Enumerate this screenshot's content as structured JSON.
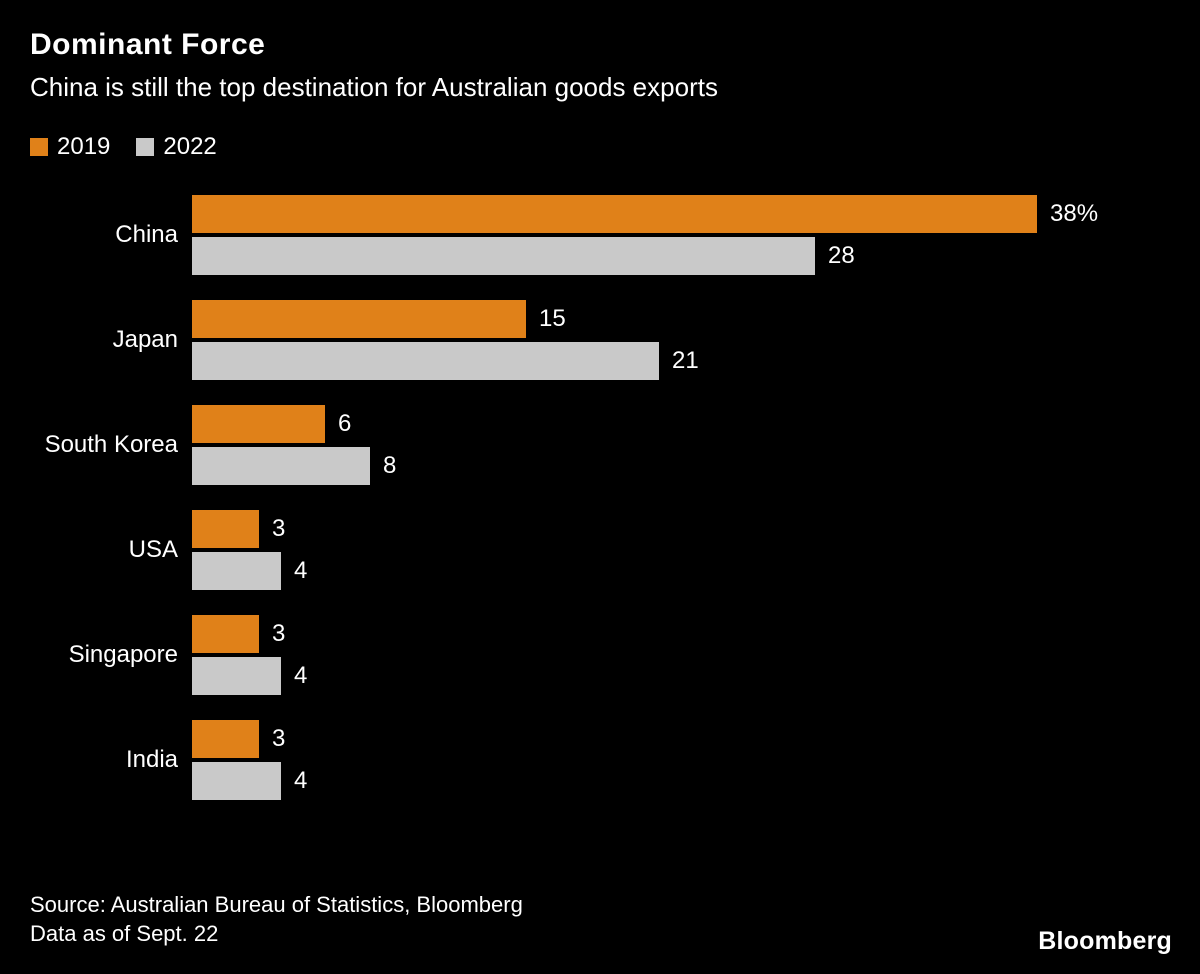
{
  "title": "Dominant Force",
  "subtitle": "China is still the top destination for Australian goods exports",
  "legend": [
    {
      "label": "2019",
      "color": "#e08119"
    },
    {
      "label": "2022",
      "color": "#c9c9c9"
    }
  ],
  "chart_data": {
    "type": "bar",
    "orientation": "horizontal",
    "title": "Dominant Force",
    "subtitle": "China is still the top destination for Australian goods exports",
    "categories": [
      "China",
      "Japan",
      "South Korea",
      "USA",
      "Singapore",
      "India"
    ],
    "series": [
      {
        "name": "2019",
        "color": "#e08119",
        "values": [
          38,
          15,
          6,
          3,
          3,
          3
        ],
        "labels": [
          "38%",
          "15",
          "6",
          "3",
          "3",
          "3"
        ]
      },
      {
        "name": "2022",
        "color": "#c9c9c9",
        "values": [
          28,
          21,
          8,
          4,
          4,
          4
        ],
        "labels": [
          "28",
          "21",
          "8",
          "4",
          "4",
          "4"
        ]
      }
    ],
    "xlim": [
      0,
      38
    ],
    "value_unit": "% share of goods exports",
    "grid": false,
    "legend_position": "top-left"
  },
  "source_line1": "Source: Australian Bureau of Statistics, Bloomberg",
  "source_line2": "Data as of Sept. 22",
  "brand": "Bloomberg"
}
